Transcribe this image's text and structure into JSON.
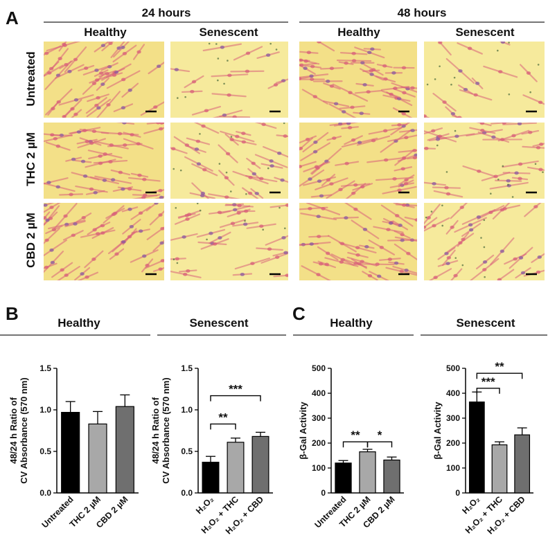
{
  "panel_a": {
    "letter": "A",
    "timepoints": [
      "24 hours",
      "48 hours"
    ],
    "conditions": [
      "Healthy",
      "Senescent"
    ],
    "row_labels": [
      "Untreated",
      "THC 2 µM",
      "CBD 2 µM"
    ],
    "micrograph_tints": {
      "healthy": "#f3e088",
      "senescent": "#f6ea9c",
      "cell": "#d8607a",
      "nucleus": "#8a5aa0"
    }
  },
  "panel_b": {
    "letter": "B",
    "group_headers": [
      "Healthy",
      "Senescent"
    ]
  },
  "panel_c": {
    "letter": "C",
    "group_headers": [
      "Healthy",
      "Senescent"
    ]
  },
  "chart_data": [
    {
      "id": "b_healthy",
      "type": "bar",
      "title": "Healthy",
      "ylabel_lines": [
        "48/24 h Ratio of",
        "CV Absorbance (570 nm)"
      ],
      "categories": [
        "Untreated",
        "THC 2 µM",
        "CBD 2 µM"
      ],
      "values": [
        0.97,
        0.83,
        1.04
      ],
      "errors": [
        0.13,
        0.15,
        0.14
      ],
      "bar_colors": [
        "#000000",
        "#a8a8a8",
        "#6f6f6f"
      ],
      "ylim": [
        0,
        1.5
      ],
      "yticks": [
        "0.0",
        "0.5",
        "1.0",
        "1.5"
      ],
      "ytick_values": [
        0,
        0.5,
        1.0,
        1.5
      ],
      "significance": []
    },
    {
      "id": "b_senescent",
      "type": "bar",
      "title": "Senescent",
      "ylabel_lines": [
        "48/24 h Ratio of",
        "CV Absorbance (570 nm)"
      ],
      "categories": [
        "H₂O₂",
        "H₂O₂ + THC",
        "H₂O₂ + CBD"
      ],
      "values": [
        0.37,
        0.61,
        0.68
      ],
      "errors": [
        0.07,
        0.05,
        0.05
      ],
      "bar_colors": [
        "#000000",
        "#a8a8a8",
        "#6f6f6f"
      ],
      "ylim": [
        0,
        1.5
      ],
      "yticks": [
        "0.0",
        "0.5",
        "1.0",
        "1.5"
      ],
      "ytick_values": [
        0,
        0.5,
        1.0,
        1.5
      ],
      "significance": [
        {
          "from": 0,
          "to": 1,
          "label": "**",
          "level": 0.83
        },
        {
          "from": 0,
          "to": 2,
          "label": "***",
          "level": 1.17
        }
      ]
    },
    {
      "id": "c_healthy",
      "type": "bar",
      "title": "Healthy",
      "ylabel_lines": [
        "β-Gal Activity"
      ],
      "categories": [
        "Untreated",
        "THC 2 µM",
        "CBD 2 µM"
      ],
      "values": [
        120,
        165,
        132
      ],
      "errors": [
        10,
        10,
        12
      ],
      "bar_colors": [
        "#000000",
        "#a8a8a8",
        "#6f6f6f"
      ],
      "ylim": [
        0,
        500
      ],
      "yticks": [
        "0",
        "100",
        "200",
        "300",
        "400",
        "500"
      ],
      "ytick_values": [
        0,
        100,
        200,
        300,
        400,
        500
      ],
      "significance": [
        {
          "from": 0,
          "to": 1,
          "label": "**",
          "level": 205
        },
        {
          "from": 1,
          "to": 2,
          "label": "*",
          "level": 205
        }
      ]
    },
    {
      "id": "c_senescent",
      "type": "bar",
      "title": "Senescent",
      "ylabel_lines": [
        "β-Gal Activity"
      ],
      "categories": [
        "H₂O₂",
        "H₂O₂ + THC",
        "H₂O₂ + CBD"
      ],
      "values": [
        365,
        193,
        233
      ],
      "errors": [
        40,
        12,
        28
      ],
      "bar_colors": [
        "#000000",
        "#a8a8a8",
        "#6f6f6f"
      ],
      "ylim": [
        0,
        500
      ],
      "yticks": [
        "0",
        "100",
        "200",
        "300",
        "400",
        "500"
      ],
      "ytick_values": [
        0,
        100,
        200,
        300,
        400,
        500
      ],
      "significance": [
        {
          "from": 0,
          "to": 1,
          "label": "***",
          "level": 420
        },
        {
          "from": 0,
          "to": 2,
          "label": "**",
          "level": 480
        }
      ]
    }
  ]
}
